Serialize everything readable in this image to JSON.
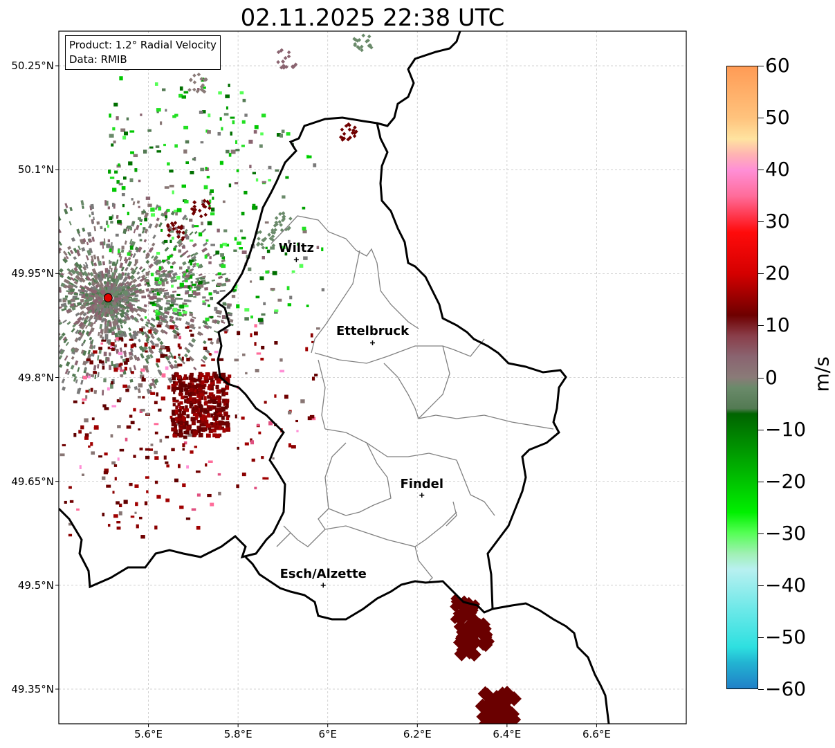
{
  "title": "02.11.2025 22:38 UTC",
  "info_box": {
    "product": "Product: 1.2° Radial Velocity",
    "data_source": "Data: RMIB"
  },
  "axes": {
    "lat_ticks": [
      "50.25°N",
      "50.1°N",
      "49.95°N",
      "49.8°N",
      "49.65°N",
      "49.5°N",
      "49.35°N"
    ],
    "lat_values": [
      50.25,
      50.1,
      49.95,
      49.8,
      49.65,
      49.5,
      49.35
    ],
    "lon_ticks": [
      "5.6°E",
      "5.8°E",
      "6°E",
      "6.2°E",
      "6.4°E",
      "6.6°E"
    ],
    "lon_values": [
      5.6,
      5.8,
      6.0,
      6.2,
      6.4,
      6.6
    ],
    "lon_range": [
      5.4,
      6.8
    ],
    "lat_range": [
      49.3,
      50.3
    ],
    "grid": true
  },
  "cities": [
    {
      "name": "Wiltz",
      "lon": 5.93,
      "lat": 49.97
    },
    {
      "name": "Ettelbruck",
      "lon": 6.1,
      "lat": 49.85
    },
    {
      "name": "Findel",
      "lon": 6.21,
      "lat": 49.63
    },
    {
      "name": "Esch/Alzette",
      "lon": 5.99,
      "lat": 49.5
    }
  ],
  "radar_site": {
    "lon": 5.51,
    "lat": 49.915,
    "color": "#e00000"
  },
  "colorbar": {
    "unit": "m/s",
    "min": -60,
    "max": 60,
    "tick_labels": [
      "60",
      "50",
      "40",
      "30",
      "20",
      "10",
      "0",
      "−10",
      "−20",
      "−30",
      "−40",
      "−50",
      "−60"
    ],
    "tick_values": [
      60,
      50,
      40,
      30,
      20,
      10,
      0,
      -10,
      -20,
      -30,
      -40,
      -50,
      -60
    ],
    "stops": [
      {
        "v": 60,
        "c": "#ff9b55"
      },
      {
        "v": 50,
        "c": "#ffc37d"
      },
      {
        "v": 46,
        "c": "#ffe3a0"
      },
      {
        "v": 43,
        "c": "#ffb3b3"
      },
      {
        "v": 40,
        "c": "#ff8fd6"
      },
      {
        "v": 35,
        "c": "#ff6c9a"
      },
      {
        "v": 28,
        "c": "#ff0b0b"
      },
      {
        "v": 20,
        "c": "#d40000"
      },
      {
        "v": 12,
        "c": "#6e0000"
      },
      {
        "v": 8,
        "c": "#8a3e4a"
      },
      {
        "v": 4,
        "c": "#8a6470"
      },
      {
        "v": 0,
        "c": "#8a7b78"
      },
      {
        "v": -2,
        "c": "#6a8a6a"
      },
      {
        "v": -6,
        "c": "#537a53"
      },
      {
        "v": -7,
        "c": "#006400"
      },
      {
        "v": -18,
        "c": "#00b400"
      },
      {
        "v": -26,
        "c": "#00f000"
      },
      {
        "v": -30,
        "c": "#55ff55"
      },
      {
        "v": -34,
        "c": "#a0f0b4"
      },
      {
        "v": -37,
        "c": "#b8f0f0"
      },
      {
        "v": -45,
        "c": "#6ae8e8"
      },
      {
        "v": -52,
        "c": "#2ee0e0"
      },
      {
        "v": -55,
        "c": "#22b4d2"
      },
      {
        "v": -60,
        "c": "#2080c8"
      }
    ]
  },
  "colors": {
    "border": "#000000",
    "canton_lines": "#808080",
    "grid": "#c8c8c8",
    "gate_receding": "#700000",
    "gate_approaching": "#006f00",
    "gate_zero": "#887674"
  }
}
